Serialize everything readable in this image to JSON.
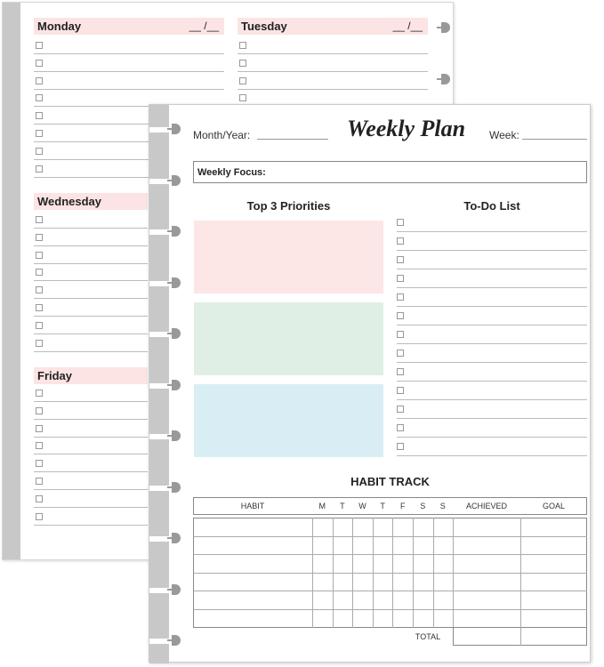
{
  "back_page": {
    "days": [
      {
        "name": "Monday",
        "date": "__ /__"
      },
      {
        "name": "Tuesday",
        "date": "__ /__"
      },
      {
        "name": "Wednesday"
      },
      {
        "name": "Friday"
      }
    ]
  },
  "front_page": {
    "title": "Weekly Plan",
    "month_year_label": "Month/Year:",
    "week_label": "Week:",
    "weekly_focus_label": "Weekly Focus:",
    "priorities_heading": "Top 3 Priorities",
    "todo_heading": "To-Do List",
    "priority_colors": [
      "#fce6e6",
      "#e0efe6",
      "#d9eef4"
    ],
    "habit": {
      "heading": "HABIT TRACK",
      "columns": [
        "HABIT",
        "M",
        "T",
        "W",
        "T",
        "F",
        "S",
        "S",
        "ACHIEVED",
        "GOAL"
      ],
      "total_label": "TOTAL"
    }
  }
}
